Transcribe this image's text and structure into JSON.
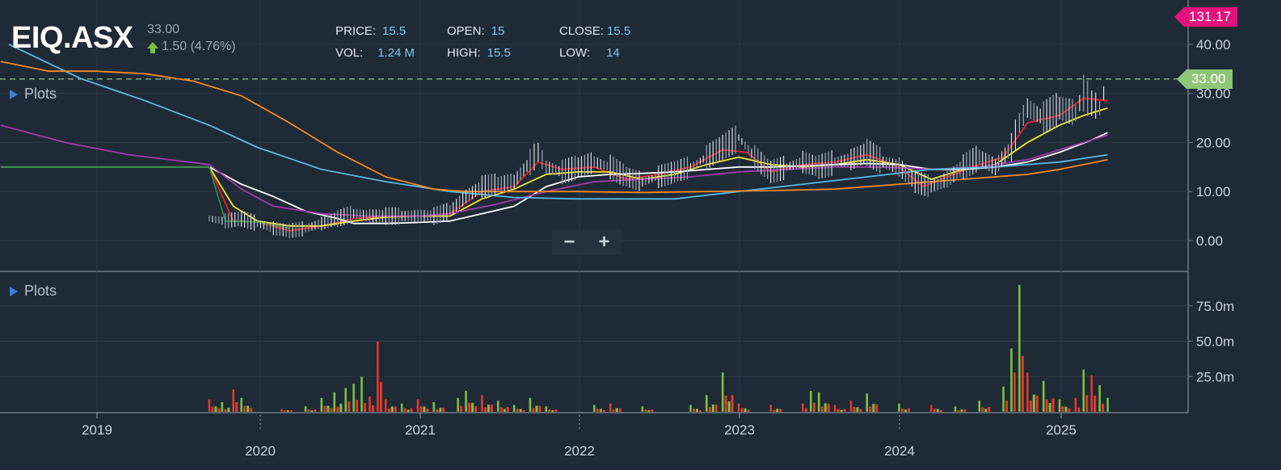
{
  "header": {
    "ticker": "EIQ.ASX",
    "last_price": "33.00",
    "change": "1.50 (4.76%)",
    "change_direction_icon": "arrow-up-icon"
  },
  "stats": {
    "price_label": "PRICE:",
    "price": "15.5",
    "vol_label": "VOL:",
    "vol": "1.24 M",
    "open_label": "OPEN:",
    "open": "15",
    "high_label": "HIGH:",
    "high": "15.5",
    "close_label": "CLOSE:",
    "close": "15.5",
    "low_label": "LOW:",
    "low": "14"
  },
  "price_panel": {
    "plots_label": "Plots",
    "plots_icon": "triangle-right-icon"
  },
  "volume_panel": {
    "plots_label": "Plots",
    "plots_icon": "triangle-right-icon"
  },
  "zoom": {
    "out_label": "−",
    "in_label": "+",
    "out_icon": "minus-icon",
    "in_icon": "plus-icon"
  },
  "badges": {
    "top_value": "131.17",
    "last_value": "33.00"
  },
  "colors": {
    "background": "#1e2a36",
    "grid": "#2a3845",
    "up": "#7fbf3f",
    "down": "#e23a2a",
    "candle": "#d8dde2",
    "pink": "#e3127d",
    "last_line": "#8fc576",
    "ma_red": "#e8202a",
    "ma_yellow": "#f2e52a",
    "ma_white": "#ffffff",
    "ma_purple": "#a23aa8",
    "ma_blue": "#59b8e0",
    "ma_orange": "#f08a24",
    "ma_green": "#2f8a3c"
  },
  "chart_data": {
    "type": "line",
    "x_ticks": [
      "2019",
      "2020",
      "2021",
      "2022",
      "2023",
      "2024",
      "2025"
    ],
    "x_range": [
      2018.4,
      2025.8
    ],
    "y_ticks": [
      "40.00",
      "30.00",
      "20.00",
      "10.00",
      "0.00"
    ],
    "y_range": [
      -4,
      42
    ],
    "last_price": 33.0,
    "volume_ticks": [
      "75.0m",
      "50.0m",
      "25.0m"
    ],
    "volume_range": [
      0,
      95
    ],
    "price_series": {
      "name": "",
      "x": [
        2019.7,
        2019.8,
        2019.9,
        2020.0,
        2020.1,
        2020.2,
        2020.3,
        2020.4,
        2020.5,
        2020.6,
        2020.7,
        2020.8,
        2020.9,
        2021.0,
        2021.1,
        2021.2,
        2021.3,
        2021.4,
        2021.5,
        2021.6,
        2021.7,
        2021.75,
        2021.8,
        2021.9,
        2022.0,
        2022.1,
        2022.2,
        2022.3,
        2022.4,
        2022.5,
        2022.6,
        2022.7,
        2022.8,
        2022.9,
        2023.0,
        2023.1,
        2023.2,
        2023.3,
        2023.4,
        2023.5,
        2023.6,
        2023.7,
        2023.8,
        2023.9,
        2024.0,
        2024.1,
        2024.2,
        2024.3,
        2024.4,
        2024.5,
        2024.6,
        2024.7,
        2024.75,
        2024.8,
        2024.9,
        2025.0,
        2025.1,
        2025.15,
        2025.2,
        2025.25,
        2025.3
      ],
      "y": [
        4.5,
        4.0,
        4.5,
        3.5,
        2.5,
        2.0,
        2.5,
        3.5,
        4.5,
        5.5,
        5.0,
        5.0,
        5.0,
        5.0,
        5.0,
        6.0,
        9.0,
        11.0,
        11.5,
        12.0,
        16.0,
        18.0,
        15.0,
        14.0,
        15.0,
        16.0,
        15.0,
        13.0,
        12.0,
        13.0,
        14.0,
        15.0,
        17.0,
        19.0,
        21.0,
        17.0,
        14.0,
        15.0,
        16.0,
        15.0,
        16.0,
        16.5,
        18.0,
        16.0,
        15.0,
        12.0,
        11.0,
        12.5,
        15.0,
        17.0,
        15.0,
        19.0,
        24.0,
        27.0,
        25.0,
        27.0,
        26.0,
        30.0,
        28.0,
        27.0,
        33.0
      ]
    },
    "moving_averages": [
      {
        "name": "",
        "color": "#e8202a",
        "x": [
          2019.7,
          2019.85,
          2020.0,
          2020.2,
          2020.4,
          2020.6,
          2020.8,
          2021.0,
          2021.2,
          2021.4,
          2021.6,
          2021.75,
          2021.9,
          2022.1,
          2022.3,
          2022.5,
          2022.7,
          2022.9,
          2023.05,
          2023.2,
          2023.4,
          2023.6,
          2023.8,
          2024.0,
          2024.15,
          2024.3,
          2024.5,
          2024.65,
          2024.8,
          2025.0,
          2025.15,
          2025.3
        ],
        "y": [
          15.0,
          4.0,
          3.8,
          2.0,
          3.0,
          4.5,
          5.0,
          5.0,
          5.5,
          10.0,
          11.0,
          16.0,
          14.5,
          15.0,
          12.5,
          13.5,
          15.0,
          18.5,
          18.0,
          14.0,
          15.5,
          16.0,
          17.5,
          15.0,
          11.0,
          13.0,
          15.5,
          17.0,
          24.0,
          25.5,
          29.0,
          28.5
        ]
      },
      {
        "name": "",
        "color": "#f2e52a",
        "x": [
          2019.7,
          2019.85,
          2020.0,
          2020.2,
          2020.4,
          2020.6,
          2020.8,
          2021.0,
          2021.2,
          2021.4,
          2021.6,
          2021.8,
          2022.0,
          2022.2,
          2022.4,
          2022.6,
          2022.8,
          2023.0,
          2023.2,
          2023.4,
          2023.6,
          2023.8,
          2024.0,
          2024.2,
          2024.4,
          2024.6,
          2024.8,
          2025.0,
          2025.15,
          2025.3
        ],
        "y": [
          15.0,
          7.0,
          4.0,
          3.0,
          3.0,
          4.0,
          4.8,
          5.0,
          5.0,
          8.5,
          10.5,
          13.5,
          14.0,
          14.0,
          12.5,
          13.5,
          15.5,
          17.0,
          15.5,
          15.0,
          15.5,
          16.5,
          15.5,
          12.5,
          14.5,
          15.5,
          20.0,
          23.5,
          25.5,
          27.0
        ]
      },
      {
        "name": "",
        "color": "#ffffff",
        "x": [
          2018.4,
          2019.7,
          2019.9,
          2020.1,
          2020.3,
          2020.5,
          2020.6,
          2020.8,
          2021.0,
          2021.2,
          2021.4,
          2021.6,
          2021.8,
          2022.0,
          2022.2,
          2022.4,
          2022.6,
          2022.8,
          2023.0,
          2023.2,
          2023.4,
          2023.6,
          2023.8,
          2024.0,
          2024.2,
          2024.4,
          2024.6,
          2024.8,
          2025.0,
          2025.2,
          2025.3
        ],
        "y": [
          15.0,
          15.0,
          11.5,
          9.0,
          6.0,
          4.5,
          3.5,
          3.5,
          3.7,
          4.0,
          5.5,
          7.0,
          11.0,
          13.0,
          13.5,
          13.7,
          14.0,
          14.5,
          15.0,
          15.0,
          15.2,
          15.5,
          15.7,
          15.5,
          14.5,
          14.5,
          15.0,
          16.0,
          18.0,
          20.5,
          22.0
        ]
      },
      {
        "name": "",
        "color": "#a23aa8",
        "x": [
          2018.4,
          2018.8,
          2019.2,
          2019.7,
          2019.9,
          2020.1,
          2020.4,
          2020.7,
          2021.0,
          2021.2,
          2021.5,
          2021.8,
          2022.1,
          2022.4,
          2022.7,
          2023.0,
          2023.3,
          2023.6,
          2023.9,
          2024.2,
          2024.5,
          2024.8,
          2025.0,
          2025.3
        ],
        "y": [
          23.5,
          20.0,
          17.5,
          15.5,
          10.5,
          7.0,
          5.5,
          5.0,
          5.0,
          5.5,
          7.5,
          10.0,
          12.0,
          12.5,
          13.0,
          14.0,
          14.5,
          15.0,
          15.0,
          14.5,
          15.0,
          16.5,
          18.5,
          21.5
        ]
      },
      {
        "name": "",
        "color": "#59b8e0",
        "x": [
          2018.45,
          2018.9,
          2019.3,
          2019.7,
          2020.0,
          2020.4,
          2020.8,
          2021.2,
          2021.6,
          2022.0,
          2022.4,
          2022.6,
          2023.0,
          2023.4,
          2023.8,
          2024.2,
          2024.6,
          2025.0,
          2025.3
        ],
        "y": [
          40.0,
          33.0,
          28.5,
          23.5,
          19.0,
          14.5,
          12.0,
          10.0,
          8.8,
          8.5,
          8.5,
          8.5,
          10.0,
          11.5,
          13.0,
          14.5,
          15.0,
          16.0,
          17.5
        ]
      },
      {
        "name": "",
        "color": "#f08a24",
        "x": [
          2018.4,
          2018.7,
          2019.0,
          2019.3,
          2019.6,
          2019.9,
          2020.2,
          2020.5,
          2020.8,
          2021.1,
          2021.3,
          2021.6,
          2022.0,
          2022.4,
          2022.8,
          2023.2,
          2023.6,
          2024.0,
          2024.4,
          2024.8,
          2025.0,
          2025.3
        ],
        "y": [
          36.5,
          34.5,
          34.5,
          34.0,
          32.5,
          29.5,
          24.0,
          18.0,
          13.0,
          10.5,
          10.0,
          10.0,
          10.0,
          9.8,
          10.0,
          10.2,
          10.5,
          11.5,
          12.5,
          13.5,
          14.5,
          16.5
        ]
      },
      {
        "name": "",
        "color": "#2f8a3c",
        "x": [
          2018.4,
          2019.7,
          2019.8,
          2020.0,
          2020.2
        ],
        "y": [
          15.0,
          15.0,
          4.0,
          3.8,
          2.5
        ]
      }
    ],
    "volume": {
      "x": [
        2019.7,
        2019.78,
        2019.85,
        2019.9,
        2020.15,
        2020.3,
        2020.4,
        2020.48,
        2020.55,
        2020.6,
        2020.65,
        2020.7,
        2020.75,
        2020.8,
        2020.9,
        2021.0,
        2021.1,
        2021.25,
        2021.3,
        2021.4,
        2021.5,
        2021.6,
        2021.7,
        2021.8,
        2022.1,
        2022.2,
        2022.4,
        2022.7,
        2022.8,
        2022.9,
        2023.0,
        2023.2,
        2023.4,
        2023.45,
        2023.5,
        2023.6,
        2023.7,
        2023.8,
        2024.0,
        2024.2,
        2024.35,
        2024.5,
        2024.65,
        2024.7,
        2024.72,
        2024.75,
        2024.8,
        2024.9,
        2025.0,
        2025.1,
        2025.15,
        2025.2,
        2025.25,
        2025.3
      ],
      "v": [
        9,
        7,
        16,
        10,
        2,
        4,
        10,
        14,
        17,
        20,
        25,
        11,
        50,
        9,
        6,
        9,
        7,
        10,
        15,
        12,
        8,
        5,
        10,
        4,
        5,
        6,
        4,
        5,
        12,
        28,
        6,
        5,
        6,
        15,
        14,
        5,
        8,
        13,
        6,
        5,
        4,
        8,
        18,
        45,
        28,
        90,
        28,
        22,
        9,
        10,
        30,
        26,
        19,
        10
      ],
      "up": [
        false,
        true,
        false,
        true,
        false,
        true,
        true,
        true,
        true,
        true,
        true,
        false,
        false,
        false,
        true,
        false,
        true,
        true,
        true,
        false,
        true,
        true,
        true,
        true,
        true,
        false,
        true,
        true,
        true,
        true,
        false,
        false,
        false,
        true,
        true,
        false,
        false,
        true,
        true,
        false,
        true,
        true,
        true,
        true,
        false,
        true,
        false,
        true,
        true,
        false,
        true,
        false,
        true,
        true
      ]
    }
  }
}
